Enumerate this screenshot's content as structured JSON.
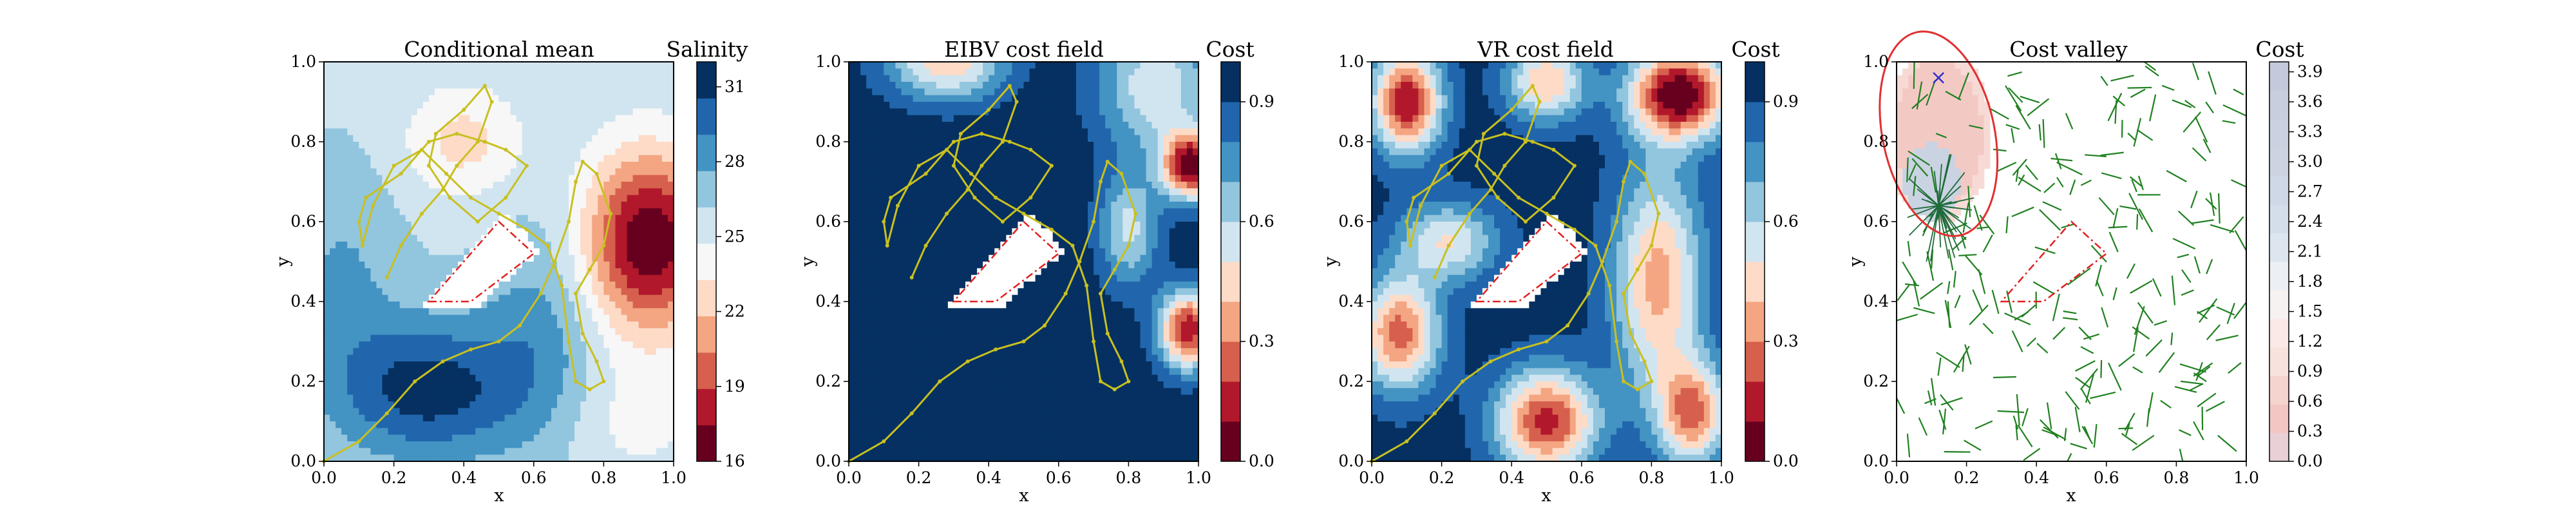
{
  "chart_data": [
    {
      "type": "heatmap",
      "title": "Conditional mean",
      "xlabel": "x",
      "ylabel": "y",
      "xlim": [
        0.0,
        1.0
      ],
      "ylim": [
        0.0,
        1.0
      ],
      "xticks": [
        "0.0",
        "0.2",
        "0.4",
        "0.6",
        "0.8",
        "1.0"
      ],
      "yticks": [
        "0.0",
        "0.2",
        "0.4",
        "0.6",
        "0.8",
        "1.0"
      ],
      "grid": false,
      "colorbar": {
        "label": "Salinity",
        "colormap": "RdBu",
        "range": [
          16,
          32
        ],
        "ticks": [
          "16",
          "19",
          "22",
          "25",
          "28",
          "31"
        ],
        "tick_values": [
          16,
          19,
          22,
          25,
          28,
          31
        ]
      },
      "field_notes": "Low salinity (~16-18) centred near x=0.93,y=0.55; high salinity (~31) near x=0.3,y=0.2 lower-left region; white polygon obstacle around x=0.3-0.6, y=0.4-0.6"
    },
    {
      "type": "heatmap",
      "title": "EIBV cost field",
      "xlabel": "x",
      "ylabel": "y",
      "xlim": [
        0.0,
        1.0
      ],
      "ylim": [
        0.0,
        1.0
      ],
      "xticks": [
        "0.0",
        "0.2",
        "0.4",
        "0.6",
        "0.8",
        "1.0"
      ],
      "yticks": [
        "0.0",
        "0.2",
        "0.4",
        "0.6",
        "0.8",
        "1.0"
      ],
      "grid": false,
      "colorbar": {
        "label": "Cost",
        "colormap": "RdBu",
        "range": [
          0.0,
          1.0
        ],
        "ticks": [
          "0.0",
          "0.3",
          "0.6",
          "0.9"
        ],
        "tick_values": [
          0.0,
          0.3,
          0.6,
          0.9
        ]
      }
    },
    {
      "type": "heatmap",
      "title": "VR cost field",
      "xlabel": "x",
      "ylabel": "y",
      "xlim": [
        0.0,
        1.0
      ],
      "ylim": [
        0.0,
        1.0
      ],
      "xticks": [
        "0.0",
        "0.2",
        "0.4",
        "0.6",
        "0.8",
        "1.0"
      ],
      "yticks": [
        "0.0",
        "0.2",
        "0.4",
        "0.6",
        "0.8",
        "1.0"
      ],
      "grid": false,
      "colorbar": {
        "label": "Cost",
        "colormap": "RdBu",
        "range": [
          0.0,
          1.0
        ],
        "ticks": [
          "0.0",
          "0.3",
          "0.6",
          "0.9"
        ],
        "tick_values": [
          0.0,
          0.3,
          0.6,
          0.9
        ]
      }
    },
    {
      "type": "heatmap",
      "title": "Cost valley",
      "xlabel": "x",
      "ylabel": "y",
      "xlim": [
        0.0,
        1.0
      ],
      "ylim": [
        0.0,
        1.0
      ],
      "xticks": [
        "0.0",
        "0.2",
        "0.4",
        "0.6",
        "0.8",
        "1.0"
      ],
      "yticks": [
        "0.0",
        "0.2",
        "0.4",
        "0.6",
        "0.8",
        "1.0"
      ],
      "grid": false,
      "colorbar": {
        "label": "Cost",
        "colormap": "RdBu",
        "range": [
          0.0,
          4.0
        ],
        "ticks": [
          "0.0",
          "0.3",
          "0.6",
          "0.9",
          "1.2",
          "1.5",
          "1.8",
          "2.1",
          "2.4",
          "2.7",
          "3.0",
          "3.3",
          "3.6",
          "3.9"
        ],
        "tick_values": [
          0.0,
          0.3,
          0.6,
          0.9,
          1.2,
          1.5,
          1.8,
          2.1,
          2.4,
          2.7,
          3.0,
          3.3,
          3.6,
          3.9
        ]
      },
      "markers": [
        {
          "shape": "x",
          "color": "#3030d0",
          "x": 0.12,
          "y": 0.96
        }
      ]
    }
  ],
  "trajectory": {
    "color": "#c8c020",
    "points": [
      [
        0.0,
        0.0
      ],
      [
        0.1,
        0.05
      ],
      [
        0.18,
        0.12
      ],
      [
        0.26,
        0.2
      ],
      [
        0.34,
        0.25
      ],
      [
        0.42,
        0.28
      ],
      [
        0.5,
        0.3
      ],
      [
        0.56,
        0.34
      ],
      [
        0.62,
        0.42
      ],
      [
        0.66,
        0.5
      ],
      [
        0.7,
        0.6
      ],
      [
        0.72,
        0.7
      ],
      [
        0.74,
        0.75
      ],
      [
        0.78,
        0.72
      ],
      [
        0.82,
        0.62
      ],
      [
        0.8,
        0.54
      ],
      [
        0.76,
        0.48
      ],
      [
        0.72,
        0.42
      ],
      [
        0.74,
        0.32
      ],
      [
        0.78,
        0.25
      ],
      [
        0.8,
        0.2
      ],
      [
        0.76,
        0.18
      ],
      [
        0.72,
        0.2
      ],
      [
        0.7,
        0.3
      ],
      [
        0.68,
        0.44
      ],
      [
        0.64,
        0.54
      ],
      [
        0.58,
        0.58
      ],
      [
        0.5,
        0.62
      ],
      [
        0.42,
        0.66
      ],
      [
        0.35,
        0.72
      ],
      [
        0.28,
        0.78
      ],
      [
        0.2,
        0.74
      ],
      [
        0.14,
        0.64
      ],
      [
        0.11,
        0.54
      ],
      [
        0.1,
        0.6
      ],
      [
        0.12,
        0.66
      ],
      [
        0.22,
        0.72
      ],
      [
        0.3,
        0.8
      ],
      [
        0.38,
        0.82
      ],
      [
        0.46,
        0.8
      ],
      [
        0.52,
        0.78
      ],
      [
        0.58,
        0.74
      ],
      [
        0.52,
        0.66
      ],
      [
        0.44,
        0.6
      ],
      [
        0.36,
        0.66
      ],
      [
        0.3,
        0.74
      ],
      [
        0.32,
        0.82
      ],
      [
        0.4,
        0.88
      ],
      [
        0.46,
        0.94
      ],
      [
        0.48,
        0.9
      ],
      [
        0.44,
        0.8
      ],
      [
        0.38,
        0.74
      ],
      [
        0.34,
        0.68
      ],
      [
        0.28,
        0.62
      ],
      [
        0.22,
        0.54
      ],
      [
        0.18,
        0.46
      ]
    ]
  },
  "obstacle": {
    "polygon": [
      [
        0.3,
        0.4
      ],
      [
        0.42,
        0.4
      ],
      [
        0.6,
        0.52
      ],
      [
        0.5,
        0.6
      ],
      [
        0.3,
        0.4
      ]
    ],
    "edge_color": "#e02020"
  },
  "colors": {
    "tree_edges": "#208020",
    "marker_x": "#3030d0",
    "ellipse": "#e03030"
  }
}
